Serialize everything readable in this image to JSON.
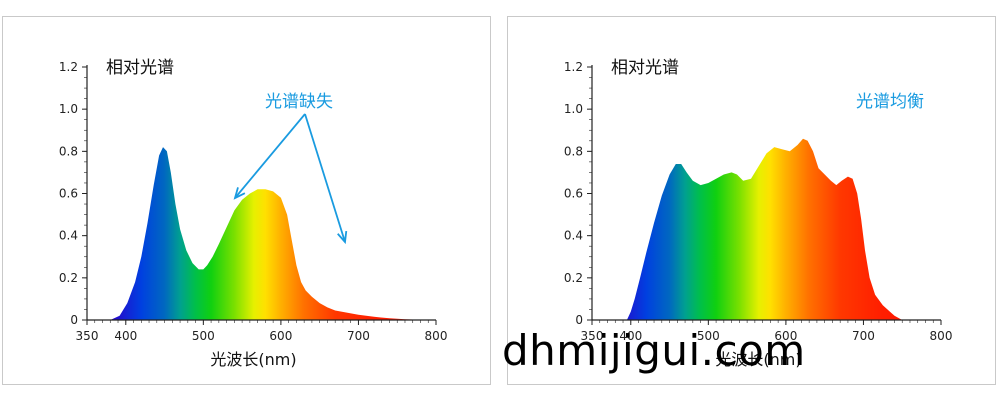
{
  "watermark": "dhmijigui.com",
  "colors": {
    "annotation": "#1a9be0",
    "axis": "#222222"
  },
  "chart_data": [
    {
      "type": "area",
      "ylabel": "相对光谱",
      "xlabel": "光波长(nm)",
      "xlim": [
        350,
        800
      ],
      "ylim": [
        0,
        1.2
      ],
      "xticks": [
        350,
        400,
        500,
        600,
        700,
        800
      ],
      "yticks": [
        0,
        0.2,
        0.4,
        0.6,
        0.8,
        1.0,
        1.2
      ],
      "ytick_labels": [
        "0",
        "0.2",
        "0.4",
        "0.6",
        "0.8",
        "1.0",
        "1.2"
      ],
      "xtick_labels": [
        "350",
        "400",
        "500",
        "600",
        "700",
        "800"
      ],
      "annotation": "光谱缺失",
      "series": [
        {
          "x": [
            380,
            392,
            402,
            412,
            420,
            428,
            436,
            443,
            448,
            453,
            458,
            464,
            470,
            478,
            486,
            494,
            500,
            505,
            512,
            520,
            530,
            540,
            550,
            560,
            570,
            580,
            590,
            600,
            608,
            614,
            620,
            626,
            632,
            640,
            650,
            660,
            670,
            685,
            700,
            720,
            740,
            760,
            780,
            790
          ],
          "y": [
            0,
            0.02,
            0.08,
            0.18,
            0.3,
            0.46,
            0.64,
            0.78,
            0.82,
            0.8,
            0.7,
            0.55,
            0.43,
            0.33,
            0.27,
            0.24,
            0.24,
            0.26,
            0.3,
            0.36,
            0.44,
            0.52,
            0.57,
            0.6,
            0.62,
            0.62,
            0.61,
            0.58,
            0.5,
            0.38,
            0.26,
            0.18,
            0.14,
            0.11,
            0.08,
            0.06,
            0.045,
            0.035,
            0.025,
            0.015,
            0.008,
            0.004,
            0.001,
            0
          ]
        }
      ]
    },
    {
      "type": "area",
      "ylabel": "相对光谱",
      "xlabel": "光波长(nm)",
      "xlim": [
        350,
        800
      ],
      "ylim": [
        0,
        1.2
      ],
      "xticks": [
        350,
        400,
        500,
        600,
        700,
        800
      ],
      "yticks": [
        0,
        0.2,
        0.4,
        0.6,
        0.8,
        1.0,
        1.2
      ],
      "ytick_labels": [
        "0",
        "0.2",
        "0.4",
        "0.6",
        "0.8",
        "1.0",
        "1.2"
      ],
      "xtick_labels": [
        "350",
        "400",
        "500",
        "600",
        "700",
        "800"
      ],
      "annotation": "光谱均衡",
      "series": [
        {
          "x": [
            395,
            400,
            405,
            412,
            420,
            430,
            440,
            450,
            458,
            465,
            472,
            480,
            490,
            500,
            510,
            520,
            530,
            537,
            545,
            555,
            565,
            575,
            585,
            595,
            605,
            615,
            622,
            628,
            635,
            642,
            650,
            658,
            665,
            672,
            680,
            686,
            692,
            697,
            702,
            708,
            715,
            725,
            740,
            750
          ],
          "y": [
            0,
            0.04,
            0.1,
            0.2,
            0.32,
            0.46,
            0.59,
            0.69,
            0.74,
            0.74,
            0.7,
            0.66,
            0.64,
            0.65,
            0.67,
            0.69,
            0.7,
            0.69,
            0.66,
            0.67,
            0.73,
            0.79,
            0.82,
            0.81,
            0.8,
            0.83,
            0.86,
            0.85,
            0.8,
            0.72,
            0.69,
            0.66,
            0.64,
            0.66,
            0.68,
            0.67,
            0.6,
            0.48,
            0.33,
            0.2,
            0.12,
            0.07,
            0.02,
            0
          ]
        }
      ]
    }
  ]
}
